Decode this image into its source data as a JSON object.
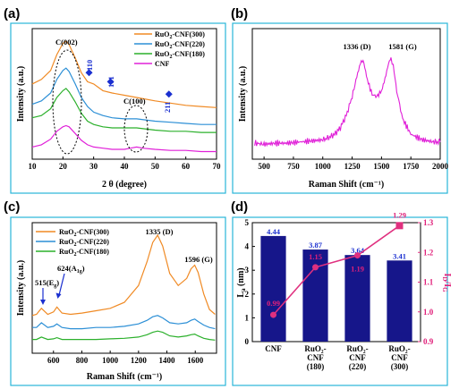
{
  "panels": {
    "a": {
      "letter": "(a)",
      "chart_data": {
        "type": "line",
        "xlabel": "2 θ (degree)",
        "ylabel": "Intensity (a.u.)",
        "xlim": [
          10,
          70
        ],
        "xticks": [
          "10",
          "20",
          "30",
          "40",
          "50",
          "60",
          "70"
        ],
        "series": [
          {
            "name": "RuO2-CNF(300)",
            "legend": [
              "RuO",
              "2",
              "-CNF(300)"
            ],
            "color": "#f08a24",
            "x": [
              10,
              13,
              16,
              18,
              20,
              21,
              22,
              24,
              26,
              28,
              30,
              33,
              36,
              40,
              44,
              50,
              55,
              60,
              65,
              70
            ],
            "y": [
              0.62,
              0.66,
              0.74,
              0.88,
              0.98,
              1.0,
              0.97,
              0.85,
              0.72,
              0.64,
              0.62,
              0.56,
              0.54,
              0.52,
              0.5,
              0.47,
              0.45,
              0.43,
              0.42,
              0.41
            ]
          },
          {
            "name": "RuO2-CNF(220)",
            "legend": [
              "RuO",
              "2",
              "-CNF(220)"
            ],
            "color": "#2c8fd6",
            "x": [
              10,
              13,
              16,
              18,
              20,
              21,
              22,
              24,
              26,
              28,
              30,
              33,
              36,
              40,
              44,
              50,
              55,
              60,
              65,
              70
            ],
            "y": [
              0.44,
              0.47,
              0.54,
              0.66,
              0.74,
              0.76,
              0.73,
              0.62,
              0.5,
              0.42,
              0.37,
              0.34,
              0.32,
              0.31,
              0.31,
              0.29,
              0.28,
              0.27,
              0.26,
              0.26
            ]
          },
          {
            "name": "RuO2-CNF(180)",
            "legend": [
              "RuO",
              "2",
              "-CNF(180)"
            ],
            "color": "#2bb02b",
            "x": [
              10,
              13,
              16,
              18,
              20,
              21,
              22,
              24,
              26,
              28,
              30,
              33,
              36,
              40,
              44,
              50,
              55,
              60,
              65,
              70
            ],
            "y": [
              0.32,
              0.34,
              0.4,
              0.5,
              0.56,
              0.58,
              0.55,
              0.46,
              0.36,
              0.29,
              0.26,
              0.24,
              0.23,
              0.23,
              0.23,
              0.21,
              0.2,
              0.2,
              0.19,
              0.19
            ]
          },
          {
            "name": "CNF",
            "legend": [
              "CNF"
            ],
            "color": "#e020d8",
            "x": [
              10,
              13,
              16,
              18,
              20,
              21,
              22,
              24,
              26,
              28,
              30,
              33,
              36,
              40,
              42,
              44,
              46,
              50,
              55,
              60,
              65,
              70
            ],
            "y": [
              0.06,
              0.08,
              0.13,
              0.2,
              0.24,
              0.25,
              0.24,
              0.18,
              0.12,
              0.08,
              0.06,
              0.05,
              0.04,
              0.04,
              0.05,
              0.06,
              0.05,
              0.04,
              0.03,
              0.03,
              0.02,
              0.02
            ]
          }
        ],
        "annotations": {
          "c002": "C(002)",
          "c100": "C(100)",
          "r110": "110",
          "r101": "101",
          "r211": "211"
        },
        "diamond_markers": [
          [
            28.5,
            0.72
          ],
          [
            35.5,
            0.64
          ],
          [
            54.5,
            0.53
          ]
        ],
        "highlight_ellipses": [
          "C(002)",
          "C(100)"
        ]
      }
    },
    "b": {
      "letter": "(b)",
      "chart_data": {
        "type": "line",
        "xlabel": "Raman Shift (cm⁻¹)",
        "ylabel": "Intensity (a.u.)",
        "xlim": [
          400,
          2000
        ],
        "xticks": [
          "500",
          "750",
          "1000",
          "1250",
          "1500",
          "1750",
          "2000"
        ],
        "xtick_values": [
          500,
          750,
          1000,
          1250,
          1500,
          1750,
          2000
        ],
        "series": [
          {
            "color": "#e020d8",
            "x": [
              420,
              500,
              600,
              700,
              800,
              900,
              1000,
              1050,
              1100,
              1150,
              1200,
              1250,
              1290,
              1320,
              1336,
              1350,
              1380,
              1420,
              1460,
              1500,
              1530,
              1560,
              1581,
              1600,
              1630,
              1680,
              1750,
              1850,
              1950,
              2000
            ],
            "y": [
              0.08,
              0.07,
              0.08,
              0.08,
              0.09,
              0.1,
              0.11,
              0.13,
              0.16,
              0.22,
              0.33,
              0.5,
              0.68,
              0.8,
              0.83,
              0.8,
              0.65,
              0.52,
              0.5,
              0.55,
              0.66,
              0.8,
              0.85,
              0.78,
              0.55,
              0.3,
              0.16,
              0.11,
              0.09,
              0.09
            ]
          }
        ],
        "peak_labels": {
          "d": "1336 (D)",
          "g": "1581 (G)"
        }
      }
    },
    "c": {
      "letter": "(c)",
      "chart_data": {
        "type": "line",
        "xlabel": "Raman Shift (cm⁻¹)",
        "ylabel": "Intensity (a.u.)",
        "xlim": [
          450,
          1750
        ],
        "xticks": [
          "600",
          "800",
          "1000",
          "1200",
          "1400",
          "1600"
        ],
        "xtick_values": [
          600,
          800,
          1000,
          1200,
          1400,
          1600
        ],
        "series": [
          {
            "name": "RuO2-CNF(300)",
            "legend": [
              "RuO",
              "2",
              "-CNF(300)"
            ],
            "color": "#f08a24",
            "x": [
              450,
              480,
              515,
              560,
              600,
              624,
              660,
              720,
              800,
              900,
              1000,
              1100,
              1200,
              1260,
              1300,
              1335,
              1370,
              1420,
              1480,
              1540,
              1570,
              1596,
              1620,
              1660,
              1700,
              1740
            ],
            "y": [
              0.27,
              0.28,
              0.33,
              0.28,
              0.3,
              0.34,
              0.29,
              0.28,
              0.29,
              0.31,
              0.33,
              0.38,
              0.52,
              0.72,
              0.88,
              0.94,
              0.85,
              0.62,
              0.52,
              0.58,
              0.66,
              0.69,
              0.63,
              0.45,
              0.32,
              0.28
            ]
          },
          {
            "name": "RuO2-CNF(220)",
            "legend": [
              "RuO",
              "2",
              "-CNF(220)"
            ],
            "color": "#2c8fd6",
            "x": [
              450,
              480,
              515,
              560,
              600,
              624,
              660,
              720,
              800,
              900,
              1000,
              1100,
              1200,
              1260,
              1300,
              1335,
              1370,
              1420,
              1480,
              1540,
              1570,
              1596,
              1620,
              1660,
              1700,
              1740
            ],
            "y": [
              0.17,
              0.17,
              0.21,
              0.17,
              0.18,
              0.2,
              0.17,
              0.16,
              0.16,
              0.17,
              0.17,
              0.18,
              0.2,
              0.23,
              0.26,
              0.27,
              0.25,
              0.21,
              0.2,
              0.21,
              0.23,
              0.24,
              0.22,
              0.19,
              0.17,
              0.16
            ]
          },
          {
            "name": "RuO2-CNF(180)",
            "legend": [
              "RuO",
              "2",
              "-CNF(180)"
            ],
            "color": "#2bb02b",
            "x": [
              450,
              480,
              515,
              560,
              600,
              624,
              660,
              720,
              800,
              900,
              1000,
              1100,
              1200,
              1260,
              1300,
              1335,
              1370,
              1420,
              1480,
              1540,
              1570,
              1596,
              1620,
              1660,
              1700,
              1740
            ],
            "y": [
              0.07,
              0.07,
              0.09,
              0.07,
              0.075,
              0.085,
              0.07,
              0.07,
              0.07,
              0.07,
              0.075,
              0.08,
              0.09,
              0.11,
              0.13,
              0.14,
              0.13,
              0.1,
              0.09,
              0.1,
              0.11,
              0.115,
              0.1,
              0.08,
              0.07,
              0.065
            ]
          }
        ],
        "peak_labels": {
          "d": "1335 (D)",
          "g": "1596 (G)",
          "eg": "515(E",
          "eg_sub": "g",
          "a1g": "624(A",
          "a1g_sub": "1g"
        }
      }
    },
    "d": {
      "letter": "(d)",
      "chart_data": {
        "type": "bar",
        "categories": [
          [
            "CNF"
          ],
          [
            "RuO₂-",
            "CNF",
            "(180)"
          ],
          [
            "RuO₂-",
            "CNF",
            "(220)"
          ],
          [
            "RuO₂-",
            "CNF",
            "(300)"
          ]
        ],
        "bar_values": [
          4.44,
          3.87,
          3.64,
          3.41
        ],
        "bar_labels": [
          "4.44",
          "3.87",
          "3.64",
          "3.41"
        ],
        "bar_color": "#16168a",
        "line_values": [
          0.99,
          1.15,
          1.19,
          1.29
        ],
        "line_labels": [
          "0.99",
          "1.15",
          "1.19",
          "1.29"
        ],
        "line_color": "#e0307f",
        "ylabel_left": "L",
        "ylabel_left_sub": "a",
        "ylabel_left_unit": " (nm)",
        "ylabel_right": "I",
        "ylabel_right_sub1": "D",
        "ylabel_right_mid": "/I",
        "ylabel_right_sub2": "G",
        "ylim_left": [
          0,
          5
        ],
        "yticks_left": [
          "0",
          "1",
          "2",
          "3",
          "4",
          "5"
        ],
        "ylim_right": [
          0.9,
          1.3
        ],
        "yticks_right": [
          "0.9",
          "1.0",
          "1.1",
          "1.2",
          "1.3"
        ]
      }
    }
  },
  "colors": {
    "panel_border": "#29b6d8"
  }
}
